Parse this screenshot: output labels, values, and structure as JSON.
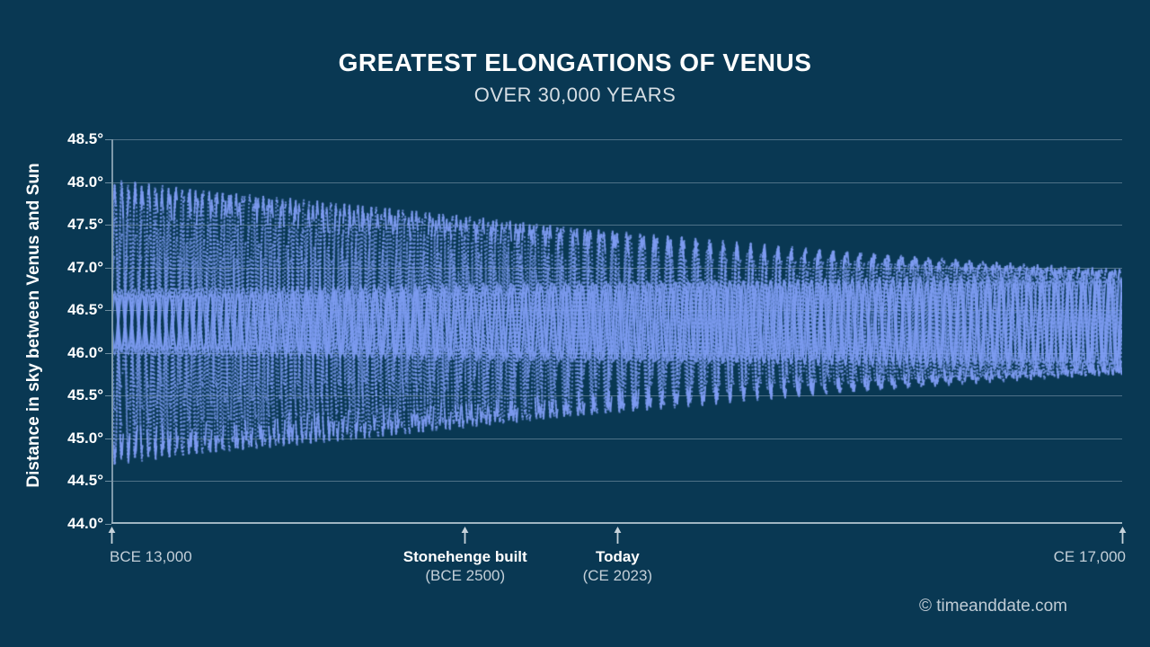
{
  "header": {
    "title": "GREATEST ELONGATIONS OF VENUS",
    "subtitle": "OVER 30,000 YEARS"
  },
  "colors": {
    "background": "#093853",
    "gridline": "#4e7187",
    "axis_line": "#9fb5c2",
    "series": "#7e9cf2",
    "title_text": "#ffffff",
    "secondary_text": "#c3cfd8"
  },
  "chart_data": {
    "type": "line",
    "title": "GREATEST ELONGATIONS OF VENUS",
    "subtitle": "OVER 30,000 YEARS",
    "ylabel": "Distance in sky between Venus and Sun",
    "xlabel": "",
    "grid": true,
    "legend": "none",
    "ylim_deg": [
      44.0,
      48.5
    ],
    "y_tick_step_deg": 0.5,
    "y_ticks": [
      "48.5°",
      "48.0°",
      "47.5°",
      "47.0°",
      "46.5°",
      "46.0°",
      "45.5°",
      "45.0°",
      "44.5°",
      "44.0°"
    ],
    "x_range_years": [
      -13000,
      17000
    ],
    "series": [
      {
        "name": "Greatest elongation of Venus",
        "color": "#7e9cf2",
        "center_deg": 46.36,
        "outer_envelope_deg": {
          "start": 1.61,
          "end": 0.6,
          "shape_exponent": 1.25
        },
        "inner_band_deg": {
          "start": 0.37,
          "end": 0.57
        },
        "left_extremes_deg": {
          "max": 47.97,
          "min": 44.76
        },
        "right_extremes_deg": {
          "max": 46.97,
          "min": 45.76
        },
        "pattern": "dense aliased oscillation, period about 15 px, phase-locked pairs"
      }
    ],
    "annotations": [
      {
        "id": "bce-13000",
        "label": "BCE 13,000",
        "sublabel": "",
        "year": -13000,
        "align": "left",
        "emphasis": false
      },
      {
        "id": "stonehenge",
        "label": "Stonehenge built",
        "sublabel": "(BCE 2500)",
        "year": -2500,
        "align": "center",
        "emphasis": true
      },
      {
        "id": "today",
        "label": "Today",
        "sublabel": "(CE 2023)",
        "year": 2023,
        "align": "center",
        "emphasis": true
      },
      {
        "id": "ce-17000",
        "label": "CE 17,000",
        "sublabel": "",
        "year": 17000,
        "align": "right",
        "emphasis": false
      }
    ],
    "credit": "© timeanddate.com"
  }
}
